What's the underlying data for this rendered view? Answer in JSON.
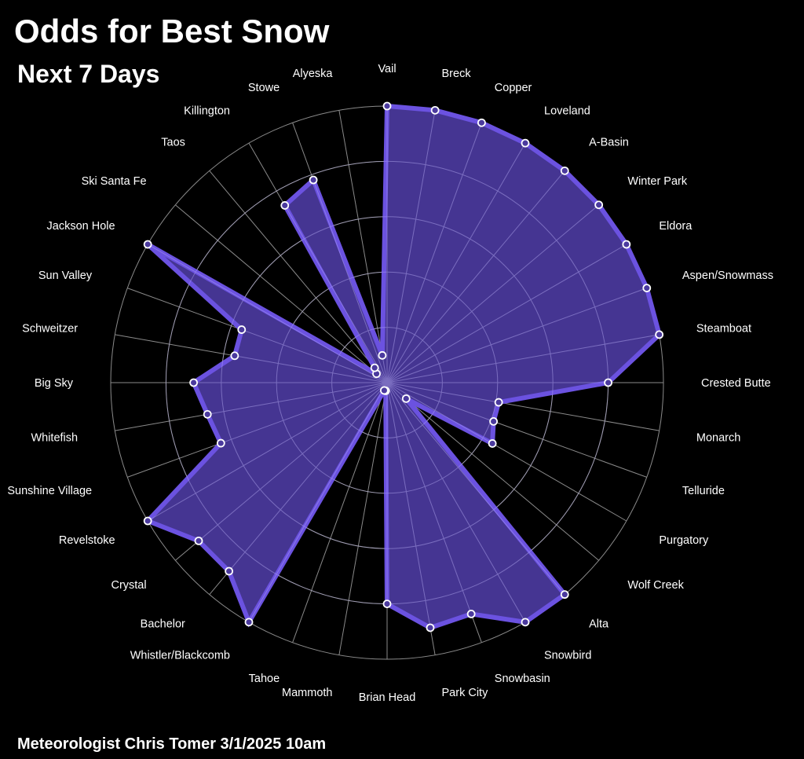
{
  "header": {
    "title": "Odds for Best Snow",
    "subtitle": "Next 7 Days"
  },
  "footer": {
    "credit": "Meteorologist Chris Tomer  3/1/2025 10am"
  },
  "colors": {
    "fill": "#4b3a9e",
    "stroke": "#6b52e0",
    "grid": "#8a8a8a",
    "background": "#000000",
    "marker": "#ffffff"
  },
  "chart_data": {
    "type": "radar",
    "title": "Odds for Best Snow",
    "subtitle": "Next 7 Days",
    "rlim": [
      0,
      1
    ],
    "grid": true,
    "categories": [
      "Vail",
      "Breck",
      "Copper",
      "Loveland",
      "A-Basin",
      "Winter Park",
      "Eldora",
      "Aspen/Snowmass",
      "Steamboat",
      "Crested Butte",
      "Monarch",
      "Telluride",
      "Purgatory",
      "Wolf Creek",
      "Alta",
      "Snowbird",
      "Snowbasin",
      "Park City",
      "Brian Head",
      "Mammoth",
      "Tahoe",
      "Whistler/Blackcomb",
      "Bachelor",
      "Crystal",
      "Revelstoke",
      "Sunshine Village",
      "Whitefish",
      "Big Sky",
      "Schweitzer",
      "Sun Valley",
      "Jackson Hole",
      "Ski Santa Fe",
      "Taos",
      "Killington",
      "Stowe",
      "Alyeska"
    ],
    "series": [
      {
        "values": [
          1.0,
          1.0,
          1.0,
          1.0,
          1.0,
          1.0,
          1.0,
          1.0,
          1.0,
          0.8,
          0.41,
          0.41,
          0.44,
          0.09,
          1.0,
          1.0,
          0.89,
          0.9,
          0.8,
          0.03,
          0.03,
          1.0,
          0.89,
          0.89,
          1.0,
          0.64,
          0.66,
          0.7,
          0.56,
          0.56,
          1.0,
          0.05,
          0.07,
          0.74,
          0.78,
          0.1
        ]
      }
    ]
  }
}
